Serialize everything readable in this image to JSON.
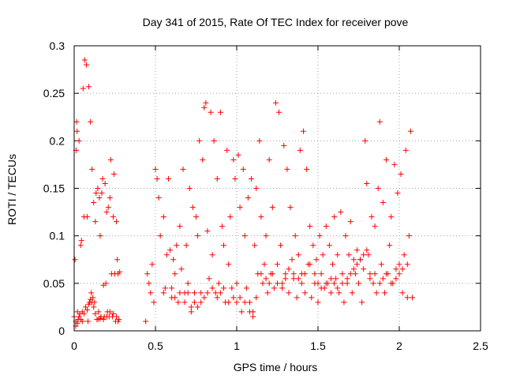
{
  "chart_data": {
    "type": "scatter",
    "title": "Day 341 of 2015, Rate Of TEC Index for receiver pove",
    "xlabel": "GPS time / hours",
    "ylabel": "ROTI / TECUs",
    "xlim": [
      0,
      2.5
    ],
    "ylim": [
      0,
      0.3
    ],
    "xticks": [
      0,
      0.5,
      1,
      1.5,
      2,
      2.5
    ],
    "xtick_labels": [
      "0",
      "0.5",
      "1",
      "1.5",
      "2",
      "2.5"
    ],
    "yticks": [
      0,
      0.05,
      0.1,
      0.15,
      0.2,
      0.25,
      0.3
    ],
    "ytick_labels": [
      "0",
      "0.05",
      "0.1",
      "0.15",
      "0.2",
      "0.25",
      "0.3"
    ],
    "grid": true,
    "marker": "+",
    "color": "#ff0000",
    "series": [
      {
        "name": "ROTI",
        "points": [
          [
            0.0,
            0.015
          ],
          [
            0.005,
            0.075
          ],
          [
            0.01,
            0.01
          ],
          [
            0.012,
            0.19
          ],
          [
            0.015,
            0.22
          ],
          [
            0.018,
            0.21
          ],
          [
            0.02,
            0.02
          ],
          [
            0.025,
            0.012
          ],
          [
            0.03,
            0.2
          ],
          [
            0.035,
            0.018
          ],
          [
            0.04,
            0.09
          ],
          [
            0.045,
            0.095
          ],
          [
            0.05,
            0.02
          ],
          [
            0.055,
            0.255
          ],
          [
            0.06,
            0.12
          ],
          [
            0.065,
            0.285
          ],
          [
            0.07,
            0.025
          ],
          [
            0.075,
            0.28
          ],
          [
            0.08,
            0.12
          ],
          [
            0.085,
            0.01
          ],
          [
            0.09,
            0.257
          ],
          [
            0.095,
            0.03
          ],
          [
            0.1,
            0.22
          ],
          [
            0.105,
            0.04
          ],
          [
            0.11,
            0.17
          ],
          [
            0.115,
            0.035
          ],
          [
            0.12,
            0.135
          ],
          [
            0.125,
            0.03
          ],
          [
            0.13,
            0.115
          ],
          [
            0.135,
            0.145
          ],
          [
            0.14,
            0.012
          ],
          [
            0.145,
            0.15
          ],
          [
            0.15,
            0.02
          ],
          [
            0.155,
            0.14
          ],
          [
            0.16,
            0.1
          ],
          [
            0.165,
            0.015
          ],
          [
            0.17,
            0.145
          ],
          [
            0.175,
            0.16
          ],
          [
            0.18,
            0.048
          ],
          [
            0.185,
            0.015
          ],
          [
            0.19,
            0.155
          ],
          [
            0.195,
            0.05
          ],
          [
            0.2,
            0.125
          ],
          [
            0.205,
            0.02
          ],
          [
            0.21,
            0.13
          ],
          [
            0.215,
            0.015
          ],
          [
            0.22,
            0.14
          ],
          [
            0.225,
            0.18
          ],
          [
            0.23,
            0.06
          ],
          [
            0.235,
            0.015
          ],
          [
            0.24,
            0.12
          ],
          [
            0.245,
            0.165
          ],
          [
            0.25,
            0.06
          ],
          [
            0.255,
            0.01
          ],
          [
            0.26,
            0.115
          ],
          [
            0.265,
            0.075
          ],
          [
            0.27,
            0.06
          ],
          [
            0.275,
            0.012
          ],
          [
            0.28,
            0.062
          ],
          [
            0.01,
            0.005
          ],
          [
            0.02,
            0.008
          ],
          [
            0.03,
            0.015
          ],
          [
            0.04,
            0.012
          ],
          [
            0.05,
            0.01
          ],
          [
            0.06,
            0.018
          ],
          [
            0.08,
            0.022
          ],
          [
            0.09,
            0.028
          ],
          [
            0.1,
            0.033
          ],
          [
            0.11,
            0.03
          ],
          [
            0.12,
            0.025
          ],
          [
            0.13,
            0.018
          ],
          [
            0.15,
            0.012
          ],
          [
            0.16,
            0.013
          ],
          [
            0.18,
            0.012
          ],
          [
            0.2,
            0.015
          ],
          [
            0.22,
            0.02
          ],
          [
            0.24,
            0.018
          ],
          [
            0.26,
            0.015
          ],
          [
            0.27,
            0.01
          ],
          [
            0.44,
            0.01
          ],
          [
            0.45,
            0.06
          ],
          [
            0.46,
            0.05
          ],
          [
            0.47,
            0.04
          ],
          [
            0.48,
            0.07
          ],
          [
            0.49,
            0.03
          ],
          [
            0.5,
            0.17
          ],
          [
            0.51,
            0.16
          ],
          [
            0.52,
            0.14
          ],
          [
            0.53,
            0.1
          ],
          [
            0.55,
            0.12
          ],
          [
            0.56,
            0.045
          ],
          [
            0.57,
            0.08
          ],
          [
            0.58,
            0.16
          ],
          [
            0.59,
            0.085
          ],
          [
            0.6,
            0.035
          ],
          [
            0.61,
            0.075
          ],
          [
            0.62,
            0.06
          ],
          [
            0.63,
            0.09
          ],
          [
            0.64,
            0.03
          ],
          [
            0.65,
            0.11
          ],
          [
            0.66,
            0.065
          ],
          [
            0.67,
            0.17
          ],
          [
            0.68,
            0.04
          ],
          [
            0.69,
            0.09
          ],
          [
            0.7,
            0.05
          ],
          [
            0.71,
            0.15
          ],
          [
            0.72,
            0.025
          ],
          [
            0.73,
            0.13
          ],
          [
            0.74,
            0.04
          ],
          [
            0.75,
            0.12
          ],
          [
            0.76,
            0.1
          ],
          [
            0.77,
            0.2
          ],
          [
            0.78,
            0.04
          ],
          [
            0.79,
            0.18
          ],
          [
            0.8,
            0.235
          ],
          [
            0.81,
            0.24
          ],
          [
            0.82,
            0.105
          ],
          [
            0.83,
            0.055
          ],
          [
            0.84,
            0.23
          ],
          [
            0.85,
            0.08
          ],
          [
            0.86,
            0.2
          ],
          [
            0.87,
            0.04
          ],
          [
            0.88,
            0.16
          ],
          [
            0.89,
            0.05
          ],
          [
            0.9,
            0.23
          ],
          [
            0.91,
            0.11
          ],
          [
            0.92,
            0.09
          ],
          [
            0.93,
            0.03
          ],
          [
            0.94,
            0.19
          ],
          [
            0.95,
            0.07
          ],
          [
            0.96,
            0.12
          ],
          [
            0.97,
            0.045
          ],
          [
            0.98,
            0.18
          ],
          [
            0.99,
            0.16
          ],
          [
            1.0,
            0.05
          ],
          [
            1.01,
            0.185
          ],
          [
            1.02,
            0.13
          ],
          [
            1.03,
            0.02
          ],
          [
            1.04,
            0.17
          ],
          [
            1.05,
            0.1
          ],
          [
            1.06,
            0.045
          ],
          [
            1.07,
            0.14
          ],
          [
            1.08,
            0.03
          ],
          [
            1.09,
            0.16
          ],
          [
            1.1,
            0.02
          ],
          [
            1.11,
            0.09
          ],
          [
            1.12,
            0.15
          ],
          [
            1.13,
            0.06
          ],
          [
            1.14,
            0.2
          ],
          [
            1.15,
            0.12
          ],
          [
            1.16,
            0.05
          ],
          [
            1.17,
            0.07
          ],
          [
            1.18,
            0.1
          ],
          [
            1.19,
            0.04
          ],
          [
            1.2,
            0.18
          ],
          [
            1.21,
            0.06
          ],
          [
            1.22,
            0.13
          ],
          [
            1.23,
            0.045
          ],
          [
            1.24,
            0.24
          ],
          [
            1.25,
            0.07
          ],
          [
            1.26,
            0.23
          ],
          [
            1.27,
            0.09
          ],
          [
            1.28,
            0.05
          ],
          [
            1.29,
            0.195
          ],
          [
            1.3,
            0.06
          ],
          [
            1.31,
            0.17
          ],
          [
            1.32,
            0.04
          ],
          [
            1.33,
            0.13
          ],
          [
            1.34,
            0.075
          ],
          [
            1.35,
            0.055
          ],
          [
            1.36,
            0.1
          ],
          [
            1.37,
            0.035
          ],
          [
            1.38,
            0.08
          ],
          [
            1.39,
            0.19
          ],
          [
            1.4,
            0.06
          ],
          [
            1.41,
            0.21
          ],
          [
            1.42,
            0.04
          ],
          [
            1.43,
            0.17
          ],
          [
            1.44,
            0.07
          ],
          [
            1.45,
            0.11
          ],
          [
            1.46,
            0.035
          ],
          [
            1.47,
            0.09
          ],
          [
            1.48,
            0.05
          ],
          [
            1.49,
            0.075
          ],
          [
            1.5,
            0.03
          ],
          [
            1.51,
            0.1
          ],
          [
            1.52,
            0.06
          ],
          [
            1.53,
            0.08
          ],
          [
            1.54,
            0.045
          ],
          [
            1.55,
            0.11
          ],
          [
            1.56,
            0.05
          ],
          [
            1.57,
            0.09
          ],
          [
            1.58,
            0.04
          ],
          [
            1.59,
            0.07
          ],
          [
            1.6,
            0.12
          ],
          [
            1.61,
            0.055
          ],
          [
            1.62,
            0.08
          ],
          [
            1.63,
            0.04
          ],
          [
            1.64,
            0.125
          ],
          [
            1.65,
            0.06
          ],
          [
            1.66,
            0.03
          ],
          [
            1.67,
            0.1
          ],
          [
            1.68,
            0.05
          ],
          [
            1.69,
            0.08
          ],
          [
            1.7,
            0.115
          ],
          [
            1.71,
            0.04
          ],
          [
            1.72,
            0.075
          ],
          [
            1.73,
            0.06
          ],
          [
            1.74,
            0.085
          ],
          [
            1.75,
            0.05
          ],
          [
            1.76,
            0.075
          ],
          [
            1.77,
            0.03
          ],
          [
            1.78,
            0.065
          ],
          [
            1.79,
            0.2
          ],
          [
            1.8,
            0.155
          ],
          [
            1.81,
            0.08
          ],
          [
            1.82,
            0.06
          ],
          [
            1.83,
            0.12
          ],
          [
            1.84,
            0.05
          ],
          [
            1.85,
            0.11
          ],
          [
            1.86,
            0.04
          ],
          [
            1.87,
            0.15
          ],
          [
            1.88,
            0.22
          ],
          [
            1.89,
            0.07
          ],
          [
            1.9,
            0.135
          ],
          [
            1.91,
            0.04
          ],
          [
            1.92,
            0.18
          ],
          [
            1.93,
            0.06
          ],
          [
            1.94,
            0.09
          ],
          [
            1.95,
            0.12
          ],
          [
            1.96,
            0.05
          ],
          [
            1.97,
            0.175
          ],
          [
            1.98,
            0.065
          ],
          [
            1.99,
            0.145
          ],
          [
            2.0,
            0.07
          ],
          [
            2.01,
            0.165
          ],
          [
            2.02,
            0.04
          ],
          [
            2.03,
            0.08
          ],
          [
            2.04,
            0.19
          ],
          [
            2.05,
            0.035
          ],
          [
            2.06,
            0.1
          ],
          [
            2.07,
            0.21
          ],
          [
            2.08,
            0.035
          ],
          [
            0.55,
            0.04
          ],
          [
            0.6,
            0.045
          ],
          [
            0.62,
            0.035
          ],
          [
            0.65,
            0.04
          ],
          [
            0.68,
            0.03
          ],
          [
            0.7,
            0.04
          ],
          [
            0.72,
            0.02
          ],
          [
            0.74,
            0.03
          ],
          [
            0.76,
            0.025
          ],
          [
            0.78,
            0.03
          ],
          [
            0.8,
            0.035
          ],
          [
            0.82,
            0.04
          ],
          [
            0.85,
            0.045
          ],
          [
            0.88,
            0.035
          ],
          [
            0.9,
            0.04
          ],
          [
            0.92,
            0.045
          ],
          [
            0.95,
            0.03
          ],
          [
            0.98,
            0.035
          ],
          [
            1.0,
            0.03
          ],
          [
            1.02,
            0.035
          ],
          [
            1.05,
            0.03
          ],
          [
            1.08,
            0.02
          ],
          [
            1.1,
            0.015
          ],
          [
            1.12,
            0.035
          ],
          [
            1.15,
            0.06
          ],
          [
            1.18,
            0.055
          ],
          [
            1.2,
            0.05
          ],
          [
            1.22,
            0.06
          ],
          [
            1.25,
            0.05
          ],
          [
            1.28,
            0.045
          ],
          [
            1.3,
            0.055
          ],
          [
            1.32,
            0.065
          ],
          [
            1.35,
            0.06
          ],
          [
            1.38,
            0.055
          ],
          [
            1.4,
            0.05
          ],
          [
            1.42,
            0.06
          ],
          [
            1.45,
            0.07
          ],
          [
            1.48,
            0.06
          ],
          [
            1.5,
            0.05
          ],
          [
            1.52,
            0.045
          ],
          [
            1.55,
            0.05
          ],
          [
            1.58,
            0.055
          ],
          [
            1.6,
            0.05
          ],
          [
            1.62,
            0.045
          ],
          [
            1.65,
            0.05
          ],
          [
            1.68,
            0.055
          ],
          [
            1.7,
            0.06
          ],
          [
            1.72,
            0.065
          ],
          [
            1.74,
            0.07
          ],
          [
            1.76,
            0.075
          ],
          [
            1.78,
            0.08
          ],
          [
            1.8,
            0.085
          ],
          [
            1.82,
            0.055
          ],
          [
            1.85,
            0.06
          ],
          [
            1.88,
            0.05
          ],
          [
            1.9,
            0.055
          ],
          [
            1.92,
            0.06
          ],
          [
            1.95,
            0.05
          ],
          [
            1.98,
            0.055
          ],
          [
            2.0,
            0.06
          ],
          [
            2.02,
            0.065
          ],
          [
            2.05,
            0.07
          ]
        ]
      }
    ]
  }
}
